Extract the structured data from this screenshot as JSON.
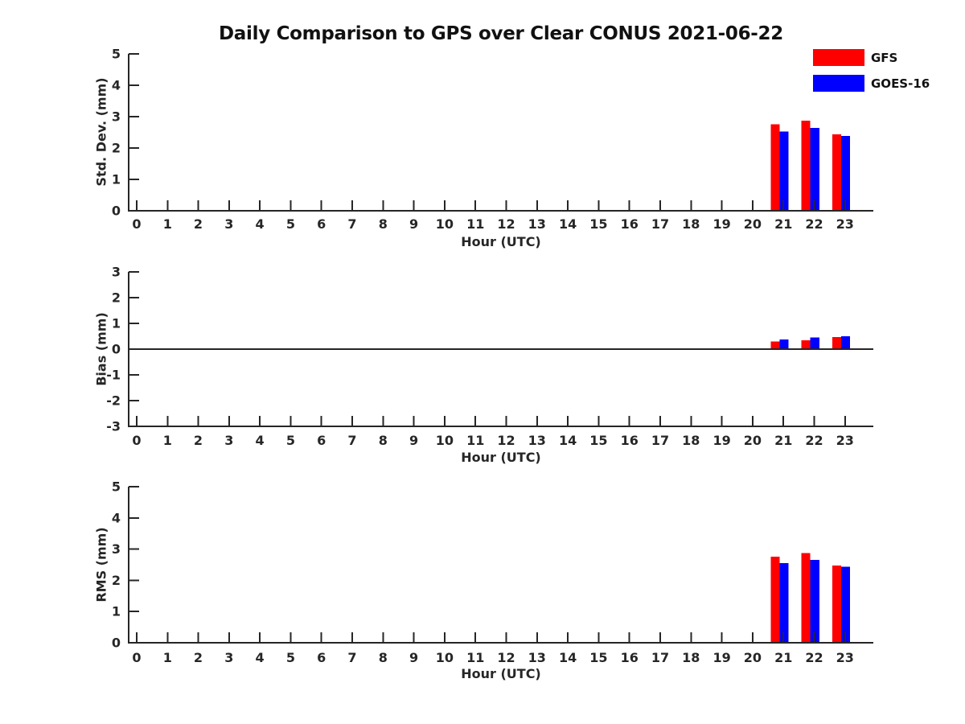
{
  "figure": {
    "title": "Daily Comparison to GPS over Clear CONUS 2021-06-22",
    "background": "#ffffff",
    "axis_color": "#262626",
    "text_color": "#262626"
  },
  "legend": {
    "position": "top-right",
    "items": [
      {
        "label": "GFS",
        "color": "#ff0000"
      },
      {
        "label": "GOES-16",
        "color": "#0000ff"
      }
    ]
  },
  "chart_data": [
    {
      "type": "bar",
      "ylabel": "Std. Dev. (mm)",
      "xlabel": "Hour (UTC)",
      "ylim": [
        0,
        5
      ],
      "yticks": [
        0,
        1,
        2,
        3,
        4,
        5
      ],
      "xticks": [
        0,
        1,
        2,
        3,
        4,
        5,
        6,
        7,
        8,
        9,
        10,
        11,
        12,
        13,
        14,
        15,
        16,
        17,
        18,
        19,
        20,
        21,
        22,
        23
      ],
      "grid": false,
      "zero_line": false,
      "x": [
        21,
        22,
        23
      ],
      "bar_width_hours": 0.29,
      "series": [
        {
          "name": "GFS",
          "color": "#ff0000",
          "offset_hours": -0.27,
          "values": [
            2.76,
            2.87,
            2.44
          ]
        },
        {
          "name": "GOES-16",
          "color": "#0000ff",
          "offset_hours": 0.02,
          "values": [
            2.53,
            2.64,
            2.38
          ]
        }
      ]
    },
    {
      "type": "bar",
      "ylabel": "Bias (mm)",
      "xlabel": "Hour (UTC)",
      "ylim": [
        -3,
        3
      ],
      "yticks": [
        3,
        2,
        1,
        0,
        -1,
        -2,
        -3
      ],
      "xticks": [
        0,
        1,
        2,
        3,
        4,
        5,
        6,
        7,
        8,
        9,
        10,
        11,
        12,
        13,
        14,
        15,
        16,
        17,
        18,
        19,
        20,
        21,
        22,
        23
      ],
      "grid": false,
      "zero_line": true,
      "x": [
        21,
        22,
        23
      ],
      "bar_width_hours": 0.29,
      "series": [
        {
          "name": "GFS",
          "color": "#ff0000",
          "offset_hours": -0.27,
          "values": [
            0.29,
            0.35,
            0.47
          ]
        },
        {
          "name": "GOES-16",
          "color": "#0000ff",
          "offset_hours": 0.02,
          "values": [
            0.38,
            0.45,
            0.5
          ]
        }
      ]
    },
    {
      "type": "bar",
      "ylabel": "RMS (mm)",
      "xlabel": "Hour (UTC)",
      "ylim": [
        0,
        5
      ],
      "yticks": [
        0,
        1,
        2,
        3,
        4,
        5
      ],
      "xticks": [
        0,
        1,
        2,
        3,
        4,
        5,
        6,
        7,
        8,
        9,
        10,
        11,
        12,
        13,
        14,
        15,
        16,
        17,
        18,
        19,
        20,
        21,
        22,
        23
      ],
      "grid": false,
      "zero_line": false,
      "x": [
        21,
        22,
        23
      ],
      "bar_width_hours": 0.29,
      "series": [
        {
          "name": "GFS",
          "color": "#ff0000",
          "offset_hours": -0.27,
          "values": [
            2.76,
            2.87,
            2.48
          ]
        },
        {
          "name": "GOES-16",
          "color": "#0000ff",
          "offset_hours": 0.02,
          "values": [
            2.55,
            2.65,
            2.43
          ]
        }
      ]
    }
  ]
}
